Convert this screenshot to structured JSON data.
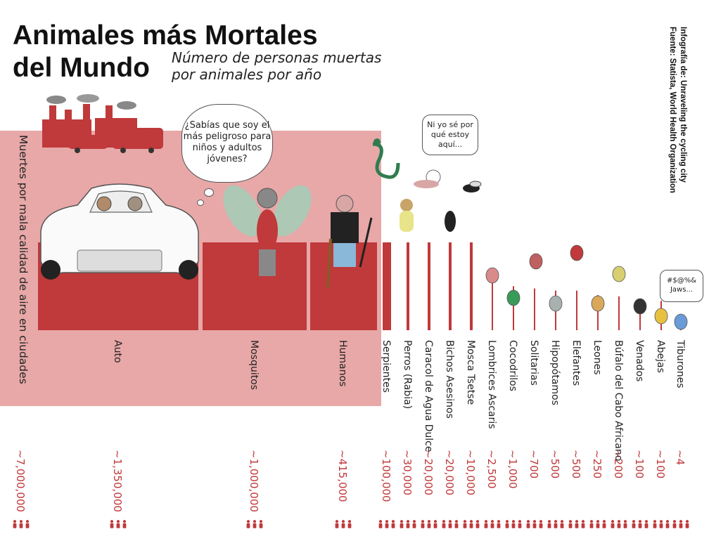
{
  "header": {
    "title": "Animales más Mortales del Mundo",
    "subtitle": "Número de personas muertas por animales por año",
    "credit": "Infografía de: Unraveling the cycling city",
    "source": "Fuente: Statista, World Health Organization"
  },
  "bubbles": {
    "car": "¿Sabías que soy el más peligroso para niños y adultos jóvenes?",
    "snail": "Ni yo sé por qué estoy aquí...",
    "shark": "#$@%& Jaws..."
  },
  "colors": {
    "bar": "#c0393b",
    "panel": "#e8a8a8",
    "value_text": "#c0393b",
    "person_icon": "#c0393b"
  },
  "chart_data": {
    "type": "bar",
    "title": "Animales más Mortales del Mundo",
    "subtitle": "Número de personas muertas por animales por año",
    "categories": [
      "Muertes por mala calidad de aire en ciudades",
      "Auto",
      "Mosquitos",
      "Humanos",
      "Serpientes",
      "Perros (Rabia)",
      "Caracol de Agua Dulce",
      "Bichos Asesinos",
      "Mosca Tsetse",
      "Lombrices Ascaris",
      "Cocodrilos",
      "Solitarias",
      "Hipopótamos",
      "Elefantes",
      "Leones",
      "Búfalo del Cabo Africano",
      "Venados",
      "Abejas",
      "Tiburones"
    ],
    "values": [
      7000000,
      1350000,
      1000000,
      415000,
      100000,
      30000,
      20000,
      20000,
      10000,
      2500,
      1000,
      700,
      500,
      500,
      250,
      200,
      100,
      100,
      4
    ],
    "value_labels": [
      "~7,000,000",
      "~1,350,000",
      "~1,000,000",
      "~415,000",
      "~100,000",
      "~30,000",
      "~20,000",
      "~20,000",
      "~10,000",
      "~2,500",
      "~1,000",
      "~700",
      "~500",
      "~500",
      "~250",
      "~200",
      "~100",
      "~100",
      "~4"
    ],
    "xlabel": "",
    "ylabel": "",
    "legend": "none",
    "grid": false
  }
}
